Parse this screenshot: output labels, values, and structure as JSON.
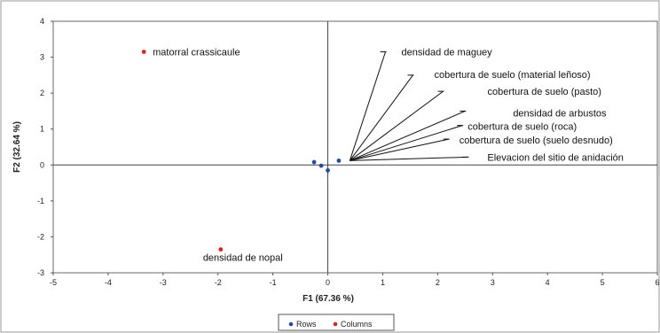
{
  "chart_data": {
    "type": "scatter",
    "xlabel": "F1 (67.36 %)",
    "ylabel": "F2 (32.64 %)",
    "xlim": [
      -5,
      6
    ],
    "ylim": [
      -3,
      4
    ],
    "x_ticks": [
      -5,
      -4,
      -3,
      -2,
      -1,
      0,
      1,
      2,
      3,
      4,
      5,
      6
    ],
    "y_ticks": [
      -3,
      -2,
      -1,
      0,
      1,
      2,
      3,
      4
    ],
    "grid": false,
    "legend_position": "bottom-center",
    "colors": {
      "rows": "#1f4e9e",
      "columns": "#e0201b",
      "vectors": "#111111",
      "axes": "#444444",
      "frame": "#9a9a9a"
    },
    "series": [
      {
        "name": "Rows",
        "points": [
          {
            "x": -0.25,
            "y": 0.08
          },
          {
            "x": -0.12,
            "y": -0.02
          },
          {
            "x": 0.0,
            "y": -0.15
          },
          {
            "x": 0.2,
            "y": 0.12
          }
        ]
      },
      {
        "name": "Columns",
        "points": [
          {
            "x": -3.35,
            "y": 3.15,
            "label": "matorral crassicaule"
          },
          {
            "x": -1.95,
            "y": -2.35,
            "label": "densidad de nopal"
          }
        ]
      }
    ],
    "vectors": [
      {
        "label": "densidad de maguey",
        "x": 1.05,
        "y": 3.15
      },
      {
        "label": "cobertura de suelo (material leñoso)",
        "x": 1.55,
        "y": 2.5
      },
      {
        "label": "cobertura de suelo (pasto)",
        "x": 2.1,
        "y": 2.05
      },
      {
        "label": "densidad de arbustos",
        "x": 2.5,
        "y": 1.5
      },
      {
        "label": "cobertura de suelo (roca)",
        "x": 2.45,
        "y": 1.1
      },
      {
        "label": "cobertura de suelo (suelo desnudo)",
        "x": 2.2,
        "y": 0.72
      },
      {
        "label": "Elevacion del sitio de anidación",
        "x": 2.55,
        "y": 0.22
      }
    ],
    "vector_origin": {
      "x": 0.4,
      "y": 0.12
    }
  }
}
